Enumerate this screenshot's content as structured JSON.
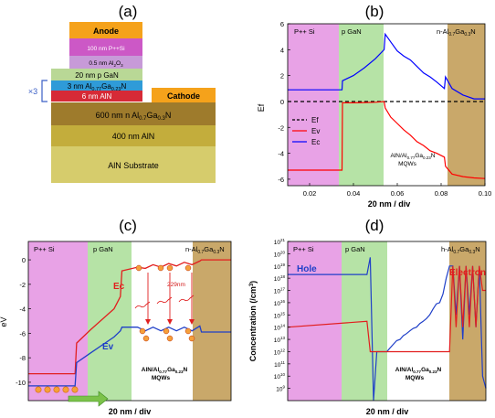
{
  "panel_a": {
    "letter": "(a)",
    "layers": [
      {
        "text": "Anode",
        "color": "#f5a21b",
        "text_color": "#111111"
      },
      {
        "text": "100 nm P++Si",
        "color": "#cc58c6",
        "text_color": "#ffffff"
      },
      {
        "text": "0.5 nm Al2O3",
        "color": "#c79ad8",
        "text_color": "#111111"
      },
      {
        "text": "20 nm p GaN",
        "color": "#b9d896",
        "text_color": "#111111"
      },
      {
        "text": "3 nm Al0.77Ga0.23N",
        "color": "#2f9bd8",
        "text_color": "#111111"
      },
      {
        "text": "6 nm AlN",
        "color": "#d62a36",
        "text_color": "#ffffff"
      },
      {
        "text": "600 nm n Al0.7Ga0.3N",
        "color": "#9e7b2c",
        "text_color": "#111111"
      },
      {
        "text": "400 nm AlN",
        "color": "#c3ad3c",
        "text_color": "#111111"
      },
      {
        "text": "AlN Substrate",
        "color": "#d6cc6c",
        "text_color": "#111111"
      }
    ],
    "cathode": {
      "text": "Cathode",
      "color": "#f5a21b"
    },
    "repeat": "×3"
  },
  "panel_b": {
    "letter": "(b)",
    "ylabel": "Ef",
    "xlabel": "20 nm / div",
    "regions": [
      "P++ Si",
      "p GaN",
      "n-Al0.7Ga0.3N"
    ],
    "mqw_label_1": "AlN/Al0.77Ga0.23N",
    "mqw_label_2": "MQWs",
    "legend": [
      "Ef",
      "Ev",
      "Ec"
    ],
    "colors": {
      "ef": "#000000",
      "ev": "#ff0000",
      "ec": "#0000ff"
    }
  },
  "panel_c": {
    "letter": "(c)",
    "ylabel": "eV",
    "xlabel": "20 nm / div",
    "regions": [
      "P++ Si",
      "p GaN",
      "n-Al0.7Ga0.3N"
    ],
    "ec_label": "Ec",
    "ev_label": "Ev",
    "well_label": "229nm",
    "mqw_label_1": "AlN/Al0.77Ga0.23N",
    "mqw_label_2": "MQWs"
  },
  "panel_d": {
    "letter": "(d)",
    "ylabel": "Concentration (/cm³)",
    "xlabel": "20 nm / div",
    "regions": [
      "P++ Si",
      "p GaN",
      "h-Al0.7Ga0.3N"
    ],
    "hole_label": "Hole",
    "electron_label": "Electron",
    "mqw_label_1": "AlN/Al0.77Ga0.23N",
    "mqw_label_2": "MQWs"
  },
  "chart_data": [
    {
      "type": "line",
      "title": "(b)",
      "xlabel": "20 nm / div",
      "ylabel": "Ef",
      "xlim": [
        0.01,
        0.1
      ],
      "ylim": [
        -6.5,
        6
      ],
      "xticks": [
        "0.02",
        "0.04",
        "0.06",
        "0.08",
        "0.10"
      ],
      "yticks": [
        "-6",
        "-4",
        "-2",
        "0",
        "2",
        "4",
        "6"
      ],
      "legend_position": "left",
      "series": [
        {
          "name": "Ef",
          "x": [
            0.01,
            0.1
          ],
          "y": [
            0,
            0
          ]
        },
        {
          "name": "Ev",
          "x": [
            0.01,
            0.0348,
            0.035,
            0.04,
            0.045,
            0.05,
            0.054,
            0.0545,
            0.057,
            0.06,
            0.063,
            0.066,
            0.069,
            0.072,
            0.075,
            0.078,
            0.0815,
            0.082,
            0.085,
            0.09,
            0.095,
            0.1
          ],
          "y": [
            -5.3,
            -5.3,
            -0.1,
            -0.1,
            -0.08,
            -0.06,
            0.0,
            -0.5,
            -1.2,
            -1.7,
            -2.2,
            -2.6,
            -3.1,
            -3.4,
            -3.8,
            -4.0,
            -4.3,
            -5.0,
            -5.6,
            -5.8,
            -5.9,
            -5.95
          ]
        },
        {
          "name": "Ec",
          "x": [
            0.01,
            0.0348,
            0.035,
            0.04,
            0.045,
            0.05,
            0.054,
            0.0545,
            0.057,
            0.06,
            0.063,
            0.066,
            0.069,
            0.072,
            0.075,
            0.078,
            0.0815,
            0.082,
            0.085,
            0.09,
            0.095,
            0.1
          ],
          "y": [
            0.9,
            0.9,
            1.6,
            2.0,
            2.6,
            3.3,
            4.0,
            5.2,
            4.6,
            3.9,
            3.5,
            3.2,
            2.7,
            2.2,
            1.9,
            1.5,
            1.0,
            1.9,
            1.0,
            0.5,
            0.2,
            0.2
          ]
        }
      ]
    },
    {
      "type": "line",
      "title": "(c)",
      "xlabel": "20 nm / div",
      "ylabel": "eV",
      "ylim": [
        -11.5,
        1.5
      ],
      "yticks": [
        "-10",
        "-8",
        "-6",
        "-4",
        "-2",
        "0"
      ],
      "series": [
        {
          "name": "Ec",
          "x": [
            0,
            30,
            31,
            40,
            55,
            59,
            60,
            70,
            75,
            80,
            85,
            90,
            95,
            100,
            105,
            110,
            111,
            120,
            130
          ],
          "y": [
            -9.3,
            -9.3,
            -6.8,
            -5.7,
            -4.0,
            -3.0,
            -0.9,
            -0.6,
            -0.7,
            -0.4,
            -0.6,
            -0.3,
            -0.5,
            -0.2,
            -0.4,
            -0.1,
            0.0,
            0.0,
            0.0
          ]
        },
        {
          "name": "Ev",
          "x": [
            0,
            30,
            31,
            40,
            55,
            59,
            60,
            70,
            75,
            80,
            85,
            90,
            95,
            100,
            105,
            110,
            111,
            120,
            130
          ],
          "y": [
            -10.3,
            -10.3,
            -8.4,
            -7.6,
            -6.3,
            -5.8,
            -5.5,
            -5.5,
            -5.8,
            -5.5,
            -5.8,
            -5.5,
            -5.8,
            -5.5,
            -5.8,
            -5.4,
            -5.9,
            -5.9,
            -5.9
          ]
        }
      ]
    },
    {
      "type": "line",
      "title": "(d)",
      "xlabel": "20 nm / div",
      "ylabel": "Concentration (/cm³)",
      "yscale": "log",
      "ylim": [
        100000000.0,
        1e+21
      ],
      "yticks": [
        "10^9",
        "10^10",
        "10^11",
        "10^12",
        "10^13",
        "10^14",
        "10^15",
        "10^16",
        "10^17",
        "10^18",
        "10^19",
        "10^20",
        "10^21"
      ],
      "series": [
        {
          "name": "Hole",
          "x": [
            0,
            24,
            25,
            26,
            27,
            28,
            29,
            30,
            31,
            32,
            33,
            34,
            35,
            36,
            37,
            38,
            39,
            40,
            41,
            42,
            43,
            44,
            45,
            46,
            47,
            48,
            49,
            50,
            51,
            52,
            53,
            54,
            55,
            56,
            57,
            58,
            59,
            60
          ],
          "y": [
            2e+18,
            2e+18,
            5e+19,
            100000000.0,
            1000000000000.0,
            1000000000000.0,
            1000000000000.0,
            1000000000000.0,
            2000000000000.0,
            4000000000000.0,
            8000000000000.0,
            10000000000000.0,
            20000000000000.0,
            30000000000000.0,
            50000000000000.0,
            80000000000000.0,
            100000000000000.0,
            200000000000000.0,
            300000000000000.0,
            500000000000000.0,
            1000000000000000.0,
            3000000000000000.0,
            8000000000000000.0,
            1e+16,
            5e+16,
            1e+18,
            1e+19,
            1e+19,
            1000000000000000.0,
            1e+19,
            10000000000000.0,
            1e+19,
            1000000000000000.0,
            1e+19,
            100000000000000.0,
            1e+19,
            10000000000.0,
            1000000000.0
          ]
        },
        {
          "name": "Electron",
          "x": [
            0,
            24,
            25,
            26,
            27,
            28,
            29,
            30,
            31,
            32,
            33,
            34,
            35,
            36,
            37,
            38,
            39,
            40,
            41,
            42,
            43,
            44,
            45,
            46,
            47,
            48,
            49,
            50,
            51,
            52,
            53,
            54,
            55,
            56,
            57,
            58,
            59,
            60
          ],
          "y": [
            100000000000000.0,
            300000000000000.0,
            1000000000000.0,
            1000000000000.0,
            1000000000000.0,
            1000000000000.0,
            1000000000000.0,
            1000000000000.0,
            1000000000000.0,
            1000000000000.0,
            1000000000000.0,
            1000000000000.0,
            1000000000000.0,
            1000000000000.0,
            1000000000000.0,
            1000000000000.0,
            1000000000000.0,
            1000000000000.0,
            1000000000000.0,
            1000000000000.0,
            1000000000000.0,
            1000000000000.0,
            1000000000000.0,
            1000000000000.0,
            1000000000000.0,
            1000000000000.0,
            1000000000000.0,
            1e+19,
            100000000000000.0,
            1e+19,
            100000000000000.0,
            1e+19,
            100000000000000.0,
            1e+19,
            100000000000000.0,
            1e+19,
            1e+17,
            1e+17
          ]
        }
      ]
    }
  ]
}
